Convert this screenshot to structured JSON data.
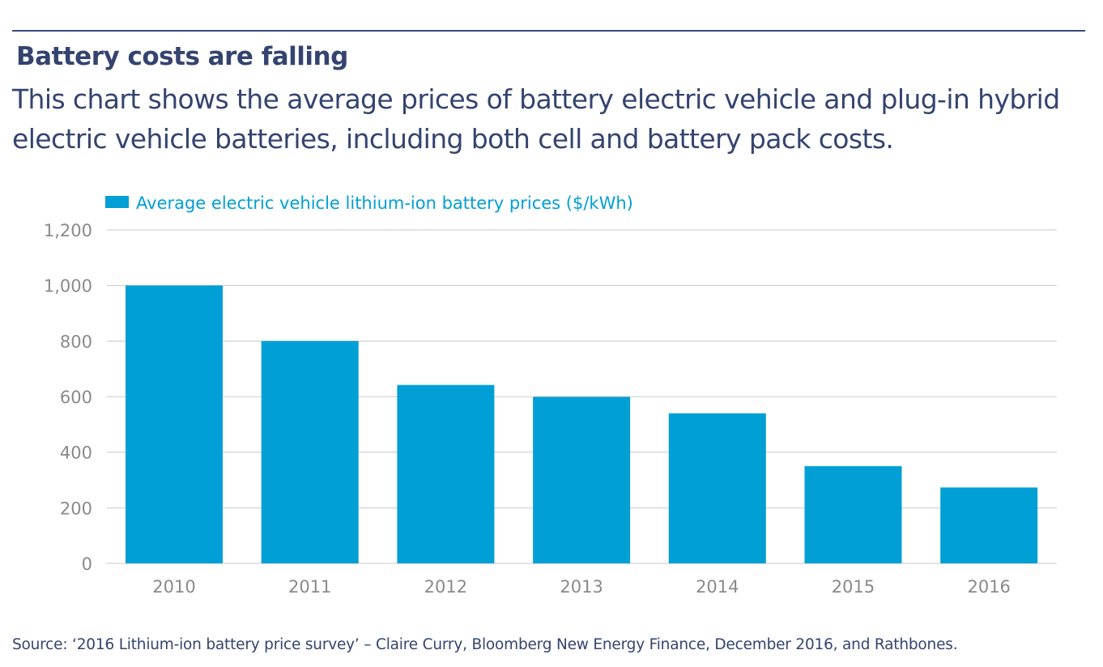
{
  "header": {
    "title": "Battery costs are falling",
    "subtitle": "This chart shows the average prices of battery electric vehicle and plug-in hybrid electric vehicle batteries, including both cell and battery pack costs."
  },
  "chart_data": {
    "type": "bar",
    "categories": [
      "2010",
      "2011",
      "2012",
      "2013",
      "2014",
      "2015",
      "2016"
    ],
    "series": [
      {
        "name": "Average electric vehicle lithium-ion battery prices ($/kWh)",
        "values": [
          1000,
          800,
          642,
          599,
          540,
          350,
          273
        ]
      }
    ],
    "ylim": [
      0,
      1200
    ],
    "yticks": [
      0,
      200,
      400,
      600,
      800,
      1000,
      1200
    ],
    "ytick_labels": [
      "0",
      "200",
      "400",
      "600",
      "800",
      "1,000",
      "1,200"
    ],
    "grid": true,
    "legend_position": "top-left",
    "bar_color": "#009fd6",
    "grid_color": "#c8c8c8"
  },
  "footer": {
    "source": "Source: ‘2016 Lithium-ion battery price survey’ – Claire Curry, Bloomberg New Energy Finance, December 2016, and Rathbones."
  }
}
